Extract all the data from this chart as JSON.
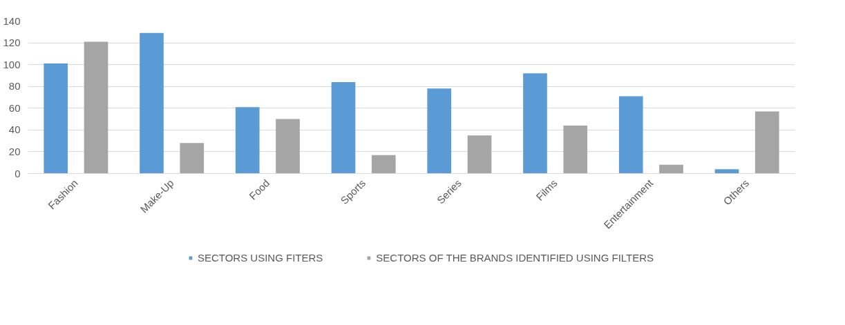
{
  "chart_data": {
    "type": "bar",
    "categories": [
      "Fashion",
      "Make-Up",
      "Food",
      "Sports",
      "Series",
      "Films",
      "Entertainment",
      "Others"
    ],
    "series": [
      {
        "name": "SECTORS USING FITERS",
        "color": "#5b9bd5",
        "values": [
          101,
          129,
          61,
          84,
          78,
          92,
          71,
          4
        ]
      },
      {
        "name": "SECTORS OF THE BRANDS IDENTIFIED USING FILTERS",
        "color": "#a5a5a5",
        "values": [
          121,
          28,
          50,
          17,
          35,
          44,
          8,
          57
        ]
      }
    ],
    "ylim": [
      0,
      140
    ],
    "yticks": [
      0,
      20,
      40,
      60,
      80,
      100,
      120,
      140
    ],
    "grid": "y",
    "legend": "bottom"
  }
}
